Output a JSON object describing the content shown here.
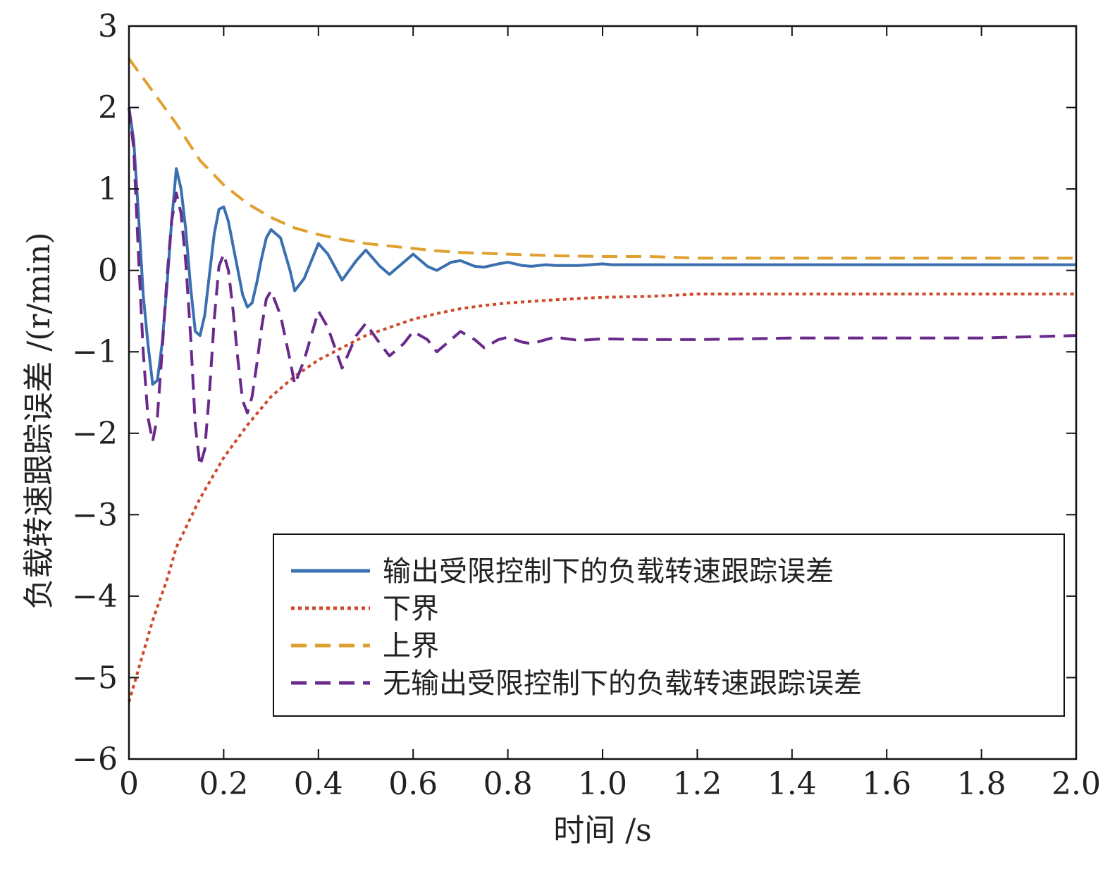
{
  "chart_data": {
    "type": "line",
    "xlabel": "时间 /s",
    "ylabel": "负载转速跟踪误差 /(r/min)",
    "xlim": [
      0,
      2.0
    ],
    "ylim": [
      -6,
      3
    ],
    "x_ticks": [
      0,
      0.2,
      0.4,
      0.6,
      0.8,
      1.0,
      1.2,
      1.4,
      1.6,
      1.8,
      2.0
    ],
    "x_tick_labels": [
      "0",
      "0.2",
      "0.4",
      "0.6",
      "0.8",
      "1.0",
      "1.2",
      "1.4",
      "1.6",
      "1.8",
      "2.0"
    ],
    "y_ticks": [
      -6,
      -5,
      -4,
      -3,
      -2,
      -1,
      0,
      1,
      2,
      3
    ],
    "y_tick_labels": [
      "−6",
      "−5",
      "−4",
      "−3",
      "−2",
      "−1",
      "0",
      "1",
      "2",
      "3"
    ],
    "grid": false,
    "legend_position": "lower-right",
    "series": [
      {
        "name": "输出受限控制下的负载转速跟踪误差",
        "color": "#3a6fb0",
        "style": "solid",
        "x": [
          0,
          0.01,
          0.02,
          0.03,
          0.04,
          0.05,
          0.06,
          0.07,
          0.08,
          0.09,
          0.1,
          0.11,
          0.12,
          0.13,
          0.14,
          0.15,
          0.16,
          0.17,
          0.18,
          0.19,
          0.2,
          0.21,
          0.22,
          0.23,
          0.24,
          0.25,
          0.26,
          0.27,
          0.28,
          0.29,
          0.3,
          0.32,
          0.34,
          0.35,
          0.37,
          0.4,
          0.42,
          0.45,
          0.48,
          0.5,
          0.53,
          0.55,
          0.58,
          0.6,
          0.63,
          0.65,
          0.68,
          0.7,
          0.73,
          0.75,
          0.78,
          0.8,
          0.83,
          0.85,
          0.88,
          0.9,
          0.95,
          1.0,
          1.02,
          1.1,
          1.2,
          1.4,
          1.6,
          1.8,
          2.0
        ],
        "y": [
          2.0,
          1.6,
          0.7,
          -0.3,
          -0.9,
          -1.4,
          -1.35,
          -0.9,
          -0.2,
          0.6,
          1.25,
          1.0,
          0.5,
          -0.2,
          -0.75,
          -0.8,
          -0.55,
          -0.05,
          0.45,
          0.75,
          0.78,
          0.6,
          0.3,
          0.0,
          -0.3,
          -0.45,
          -0.4,
          -0.15,
          0.15,
          0.4,
          0.5,
          0.4,
          0.0,
          -0.25,
          -0.1,
          0.33,
          0.2,
          -0.12,
          0.12,
          0.25,
          0.05,
          -0.05,
          0.1,
          0.2,
          0.05,
          0.0,
          0.1,
          0.12,
          0.05,
          0.04,
          0.08,
          0.1,
          0.06,
          0.05,
          0.07,
          0.06,
          0.06,
          0.08,
          0.07,
          0.07,
          0.07,
          0.07,
          0.07,
          0.07,
          0.07
        ]
      },
      {
        "name": "下界",
        "color": "#cc4a2a",
        "style": "dotted",
        "x": [
          0,
          0.02,
          0.05,
          0.08,
          0.1,
          0.15,
          0.2,
          0.25,
          0.3,
          0.35,
          0.4,
          0.45,
          0.5,
          0.55,
          0.6,
          0.65,
          0.7,
          0.75,
          0.8,
          0.85,
          0.9,
          1.0,
          1.1,
          1.2,
          1.4,
          1.6,
          1.8,
          2.0
        ],
        "y": [
          -5.3,
          -4.9,
          -4.3,
          -3.8,
          -3.4,
          -2.8,
          -2.3,
          -1.9,
          -1.55,
          -1.3,
          -1.1,
          -0.95,
          -0.8,
          -0.7,
          -0.6,
          -0.53,
          -0.47,
          -0.43,
          -0.4,
          -0.38,
          -0.36,
          -0.33,
          -0.32,
          -0.29,
          -0.29,
          -0.29,
          -0.29,
          -0.29
        ]
      },
      {
        "name": "上界",
        "color": "#e0a030",
        "style": "dashed",
        "x": [
          0,
          0.05,
          0.1,
          0.15,
          0.2,
          0.25,
          0.3,
          0.35,
          0.4,
          0.45,
          0.5,
          0.55,
          0.6,
          0.65,
          0.7,
          0.75,
          0.8,
          0.85,
          0.9,
          1.0,
          1.1,
          1.2,
          1.4,
          1.6,
          1.8,
          2.0
        ],
        "y": [
          2.6,
          2.2,
          1.8,
          1.35,
          1.05,
          0.82,
          0.65,
          0.52,
          0.44,
          0.38,
          0.33,
          0.3,
          0.27,
          0.24,
          0.22,
          0.21,
          0.2,
          0.19,
          0.18,
          0.17,
          0.17,
          0.15,
          0.15,
          0.15,
          0.15,
          0.15
        ]
      },
      {
        "name": "无输出受限控制下的负载转速跟踪误差",
        "color": "#6a2a8c",
        "style": "dashed",
        "x": [
          0,
          0.01,
          0.02,
          0.03,
          0.04,
          0.05,
          0.06,
          0.07,
          0.08,
          0.09,
          0.1,
          0.11,
          0.12,
          0.13,
          0.14,
          0.15,
          0.16,
          0.17,
          0.18,
          0.19,
          0.2,
          0.21,
          0.22,
          0.23,
          0.24,
          0.25,
          0.26,
          0.27,
          0.28,
          0.29,
          0.3,
          0.32,
          0.34,
          0.35,
          0.37,
          0.4,
          0.42,
          0.45,
          0.48,
          0.5,
          0.53,
          0.55,
          0.58,
          0.6,
          0.63,
          0.65,
          0.68,
          0.7,
          0.73,
          0.75,
          0.78,
          0.8,
          0.83,
          0.85,
          0.88,
          0.9,
          0.95,
          1.0,
          1.1,
          1.2,
          1.4,
          1.6,
          1.8,
          2.0
        ],
        "y": [
          2.0,
          1.5,
          0.2,
          -1.0,
          -1.8,
          -2.1,
          -1.8,
          -1.0,
          -0.1,
          0.6,
          0.95,
          0.7,
          0.1,
          -0.8,
          -1.9,
          -2.4,
          -2.2,
          -1.5,
          -0.6,
          0.05,
          0.2,
          0.0,
          -0.5,
          -1.1,
          -1.6,
          -1.75,
          -1.55,
          -1.15,
          -0.7,
          -0.35,
          -0.25,
          -0.55,
          -1.1,
          -1.4,
          -1.1,
          -0.5,
          -0.7,
          -1.2,
          -0.8,
          -0.65,
          -0.9,
          -1.05,
          -0.9,
          -0.75,
          -0.85,
          -1.0,
          -0.85,
          -0.75,
          -0.85,
          -0.95,
          -0.85,
          -0.82,
          -0.88,
          -0.9,
          -0.85,
          -0.82,
          -0.86,
          -0.84,
          -0.85,
          -0.85,
          -0.83,
          -0.83,
          -0.83,
          -0.8
        ]
      }
    ]
  }
}
